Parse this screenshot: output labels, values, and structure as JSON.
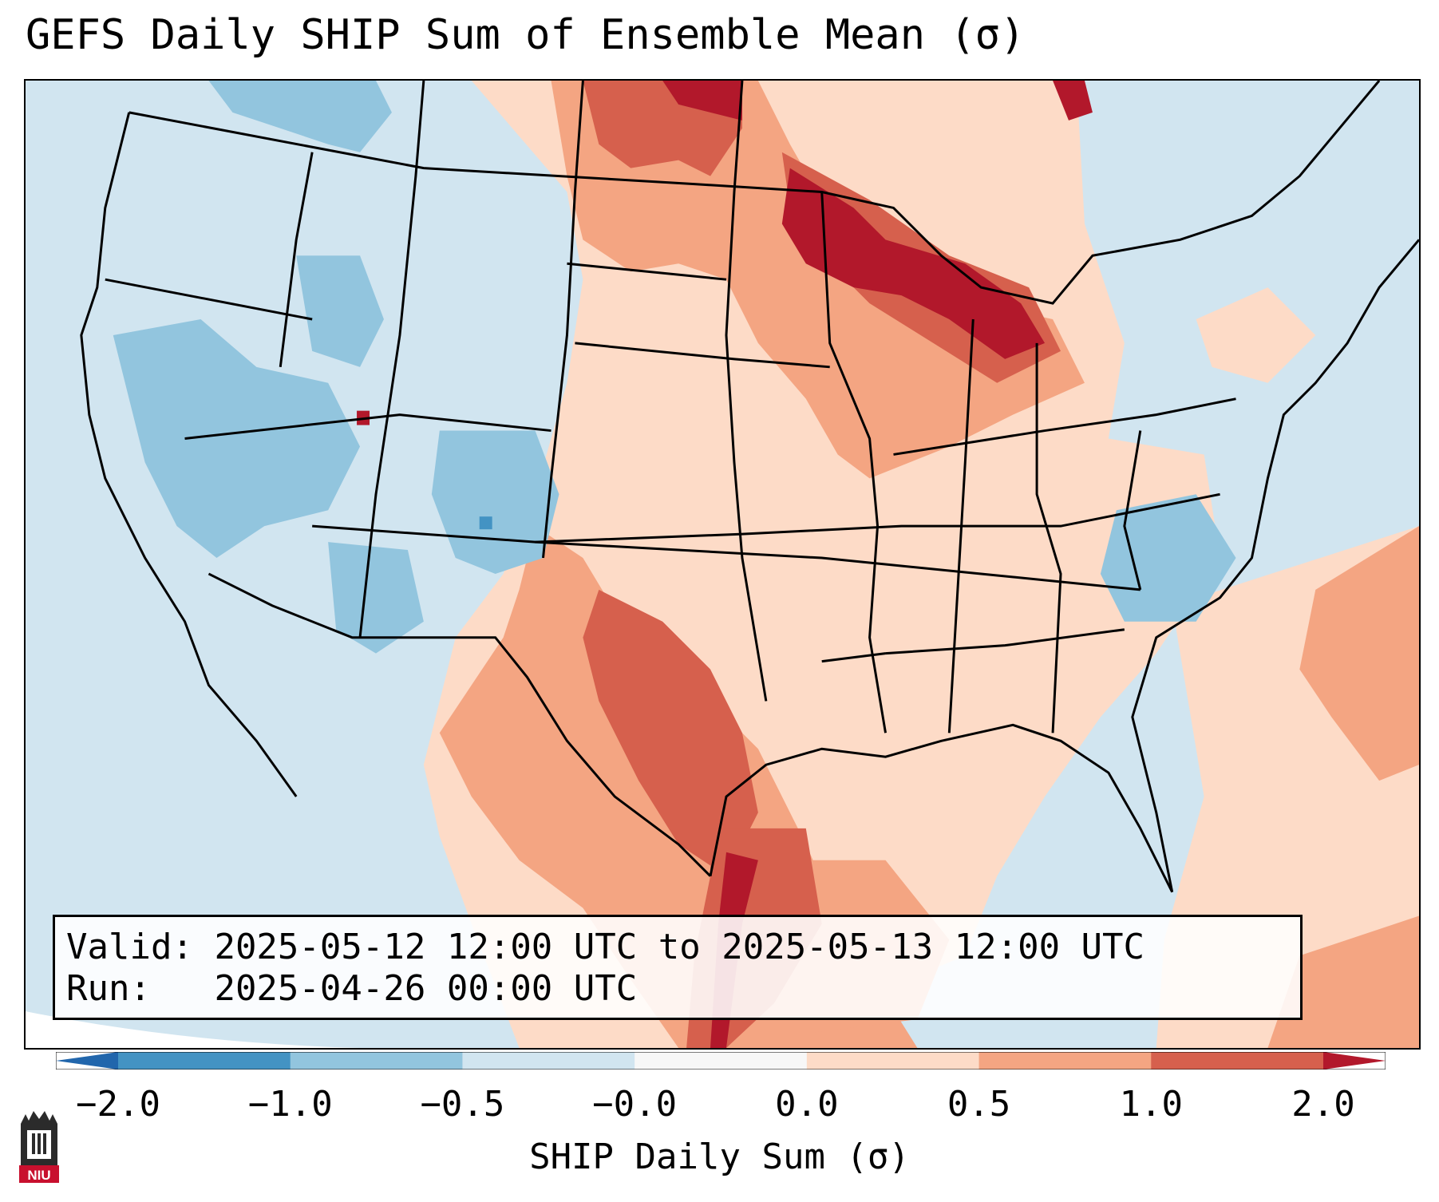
{
  "title": "GEFS Daily SHIP Sum of Ensemble Mean (σ)",
  "info": {
    "valid_label": "Valid:",
    "valid_value": "2025-05-12 12:00 UTC to 2025-05-13 12:00 UTC",
    "run_label": "Run:",
    "run_value": "2025-04-26 00:00 UTC"
  },
  "colorbar": {
    "label": "SHIP Daily Sum (σ)",
    "ticks": [
      "−2.0",
      "−1.0",
      "−0.5",
      "−0.0",
      "0.0",
      "0.5",
      "1.0",
      "2.0"
    ],
    "colors": [
      "#4393c3",
      "#92c5de",
      "#d1e5f0",
      "#f7f7f7",
      "#fddbc7",
      "#f4a582",
      "#d6604d"
    ],
    "extend_low_color": "#2166ac",
    "extend_high_color": "#b2182b"
  },
  "map": {
    "region": "Contiguous United States",
    "background_color": "#d1e5f0"
  },
  "logo": {
    "text": "NIU",
    "color": "#c8102e"
  }
}
